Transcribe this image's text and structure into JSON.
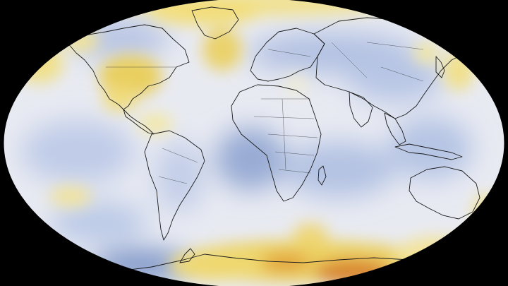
{
  "map": {
    "projection": "robinson",
    "background_color": "#000000",
    "ocean_base_color": "#e8eaf2",
    "coastline_color": "#1a1a1a",
    "palette": {
      "strong_cool": "#7d95c7",
      "cool": "#b2c1e2",
      "neutral": "#e9ebf3",
      "warm": "#f3e58e",
      "strong_warm": "#e9c23f",
      "hot": "#d9862e"
    },
    "anomaly_regions": [
      "north-atlantic-warm",
      "eastern-north-america-warm",
      "arctic-warm",
      "north-pacific-warm",
      "east-asia-warm",
      "antarctica-warm",
      "south-pacific-warm",
      "tropical-atlantic-cool",
      "eurasia-cool",
      "southern-ocean-cool"
    ]
  }
}
